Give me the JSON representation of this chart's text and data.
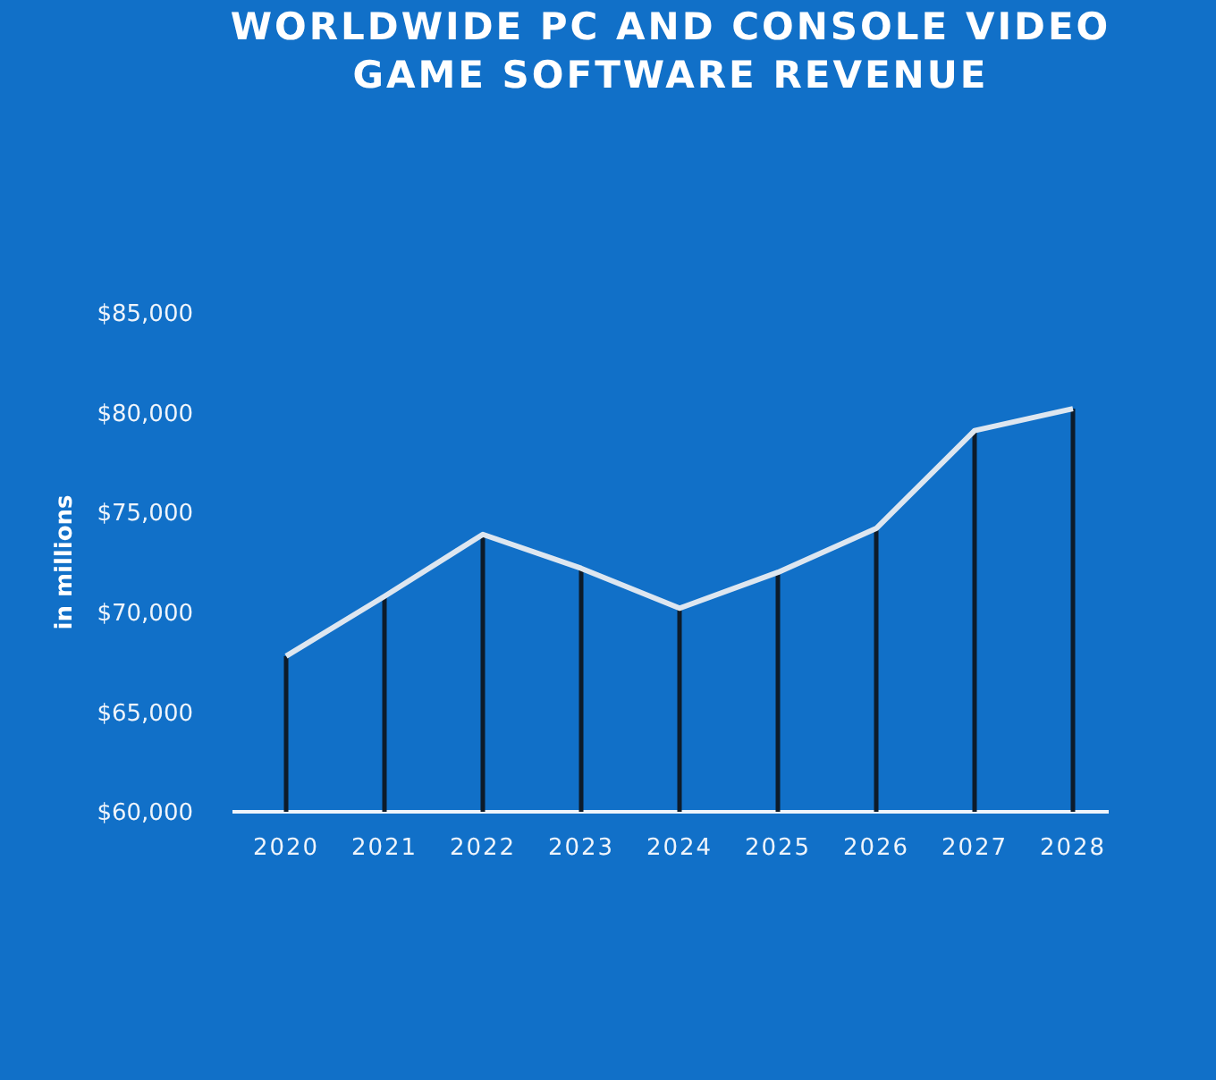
{
  "chart_data": {
    "type": "line",
    "title": "WORLDWIDE PC AND CONSOLE VIDEO GAME SOFTWARE REVENUE",
    "ylabel": "in millions",
    "categories": [
      "2020",
      "2021",
      "2022",
      "2023",
      "2024",
      "2025",
      "2026",
      "2027",
      "2028"
    ],
    "series": [
      {
        "type": "bar",
        "color": "#0d1b2a",
        "values": [
          67800,
          70800,
          73900,
          72200,
          70200,
          72000,
          74200,
          79100,
          80200
        ]
      },
      {
        "color": "#dde6f0",
        "values": [
          67800,
          70800,
          73900,
          72200,
          70200,
          72000,
          74200,
          79100,
          80200
        ]
      }
    ],
    "ylim": [
      60000,
      85000
    ],
    "yticks": [
      {
        "value": 60000,
        "label": "$60,000"
      },
      {
        "value": 65000,
        "label": "$65,000"
      },
      {
        "value": 70000,
        "label": "$70,000"
      },
      {
        "value": 75000,
        "label": "$75,000"
      },
      {
        "value": 80000,
        "label": "$80,000"
      },
      {
        "value": 85000,
        "label": "$85,000"
      }
    ],
    "marker": "none"
  }
}
